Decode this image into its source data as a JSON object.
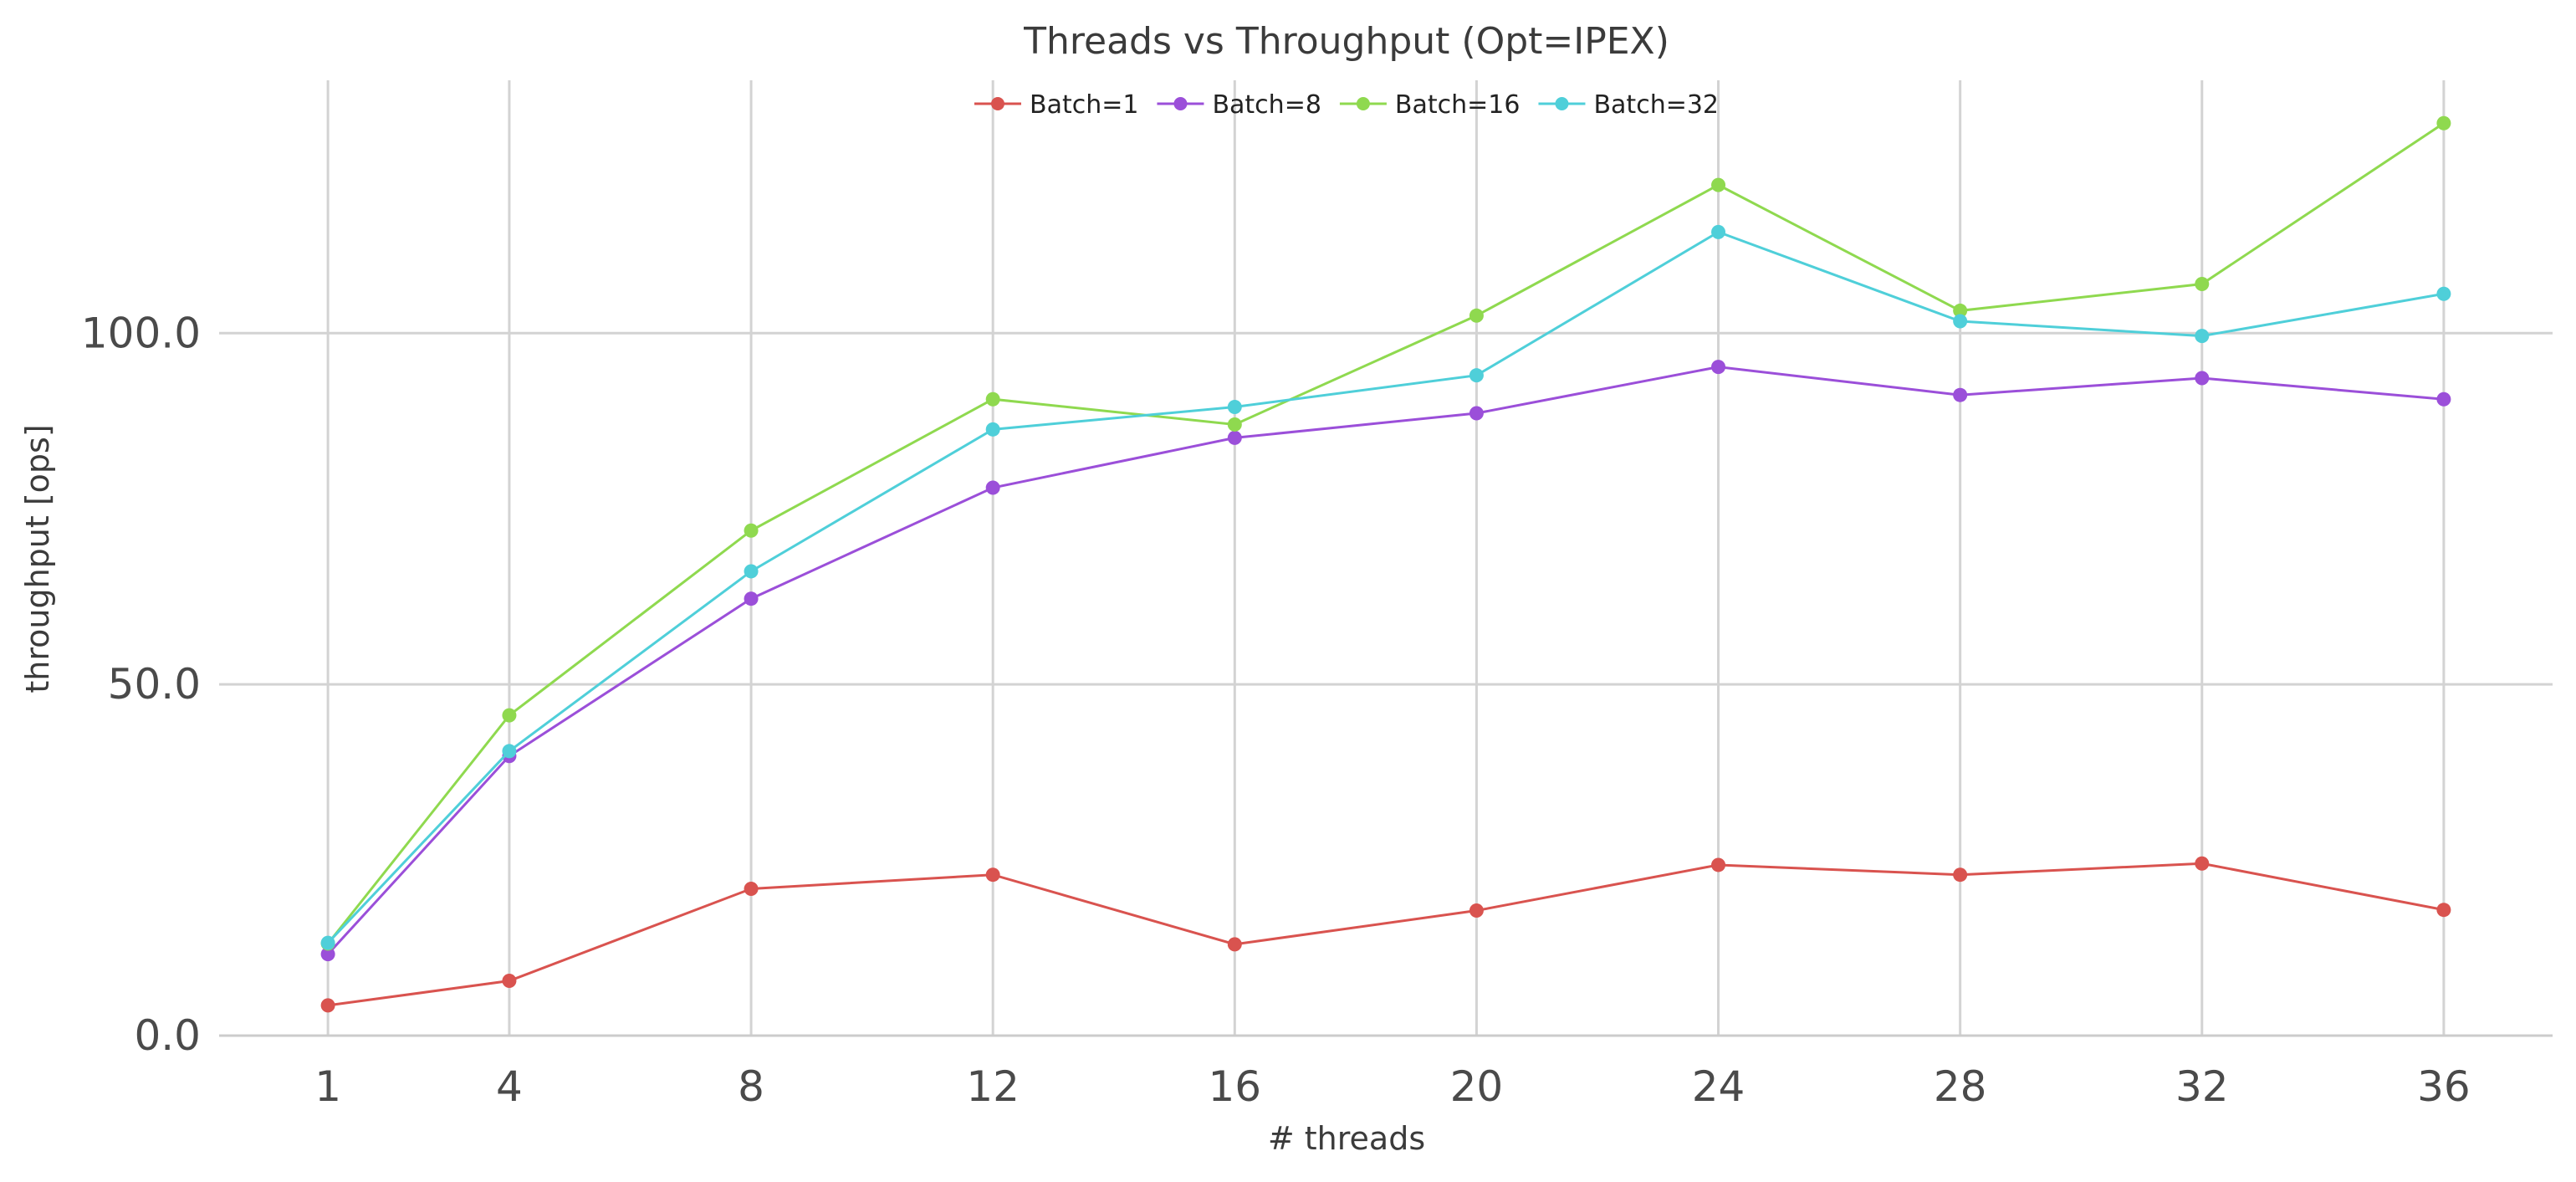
{
  "chart_data": {
    "type": "line",
    "title": "Threads vs Throughput (Opt=IPEX)",
    "xlabel": "# threads",
    "ylabel": "throughput [ops]",
    "x": [
      1,
      4,
      8,
      12,
      16,
      20,
      24,
      28,
      32,
      36
    ],
    "x_ticks": [
      "1",
      "4",
      "8",
      "12",
      "16",
      "20",
      "24",
      "28",
      "32",
      "36"
    ],
    "y_ticks": [
      "0.0",
      "50.0",
      "100.0"
    ],
    "xlim": [
      -0.8,
      37.8
    ],
    "ylim": [
      0,
      136
    ],
    "grid": true,
    "legend_position": "top-center",
    "series": [
      {
        "name": "Batch=1",
        "color": "#d9534f",
        "values": [
          4.3,
          7.8,
          20.9,
          22.9,
          13.0,
          17.8,
          24.3,
          22.9,
          24.5,
          17.9
        ]
      },
      {
        "name": "Batch=8",
        "color": "#9b4fd9",
        "values": [
          11.6,
          39.8,
          62.2,
          78.0,
          85.1,
          88.6,
          95.2,
          91.2,
          93.6,
          90.6
        ]
      },
      {
        "name": "Batch=16",
        "color": "#8fd94f",
        "values": [
          13.1,
          45.6,
          71.9,
          90.6,
          87.0,
          102.5,
          121.1,
          103.2,
          107.0,
          129.9
        ]
      },
      {
        "name": "Batch=32",
        "color": "#4fcfd9",
        "values": [
          13.2,
          40.5,
          66.1,
          86.3,
          89.5,
          94.0,
          114.4,
          101.7,
          99.6,
          105.6
        ]
      }
    ]
  }
}
